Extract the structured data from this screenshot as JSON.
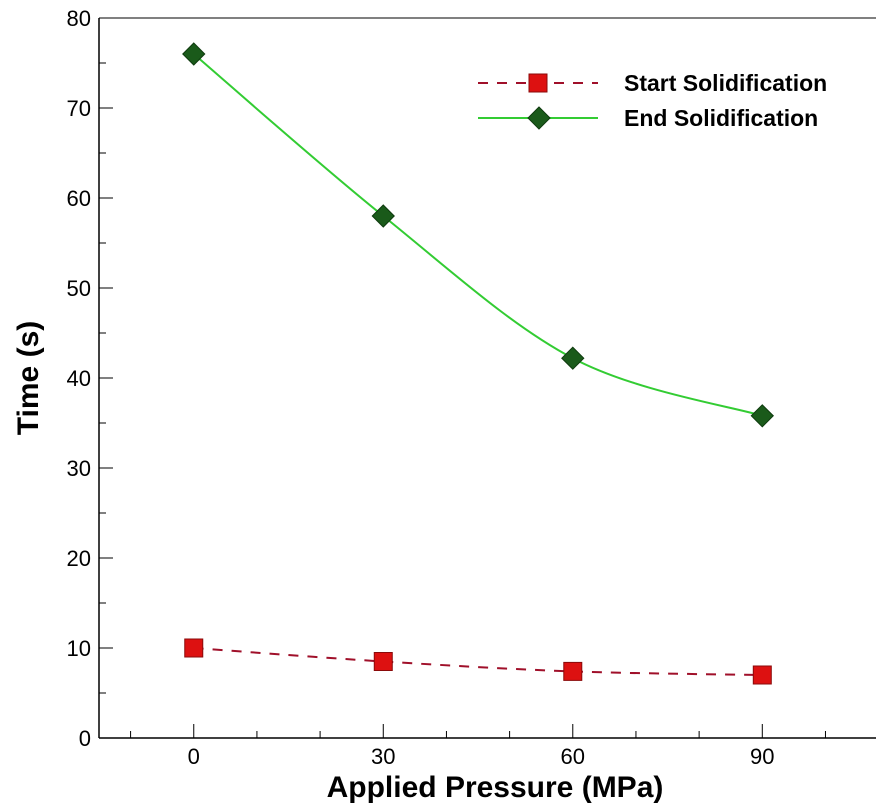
{
  "chart_data": {
    "type": "line",
    "xlabel": "Applied Pressure (MPa)",
    "ylabel": "Time (s)",
    "xlim": [
      -15,
      108
    ],
    "ylim": [
      0,
      80
    ],
    "x_ticks": [
      0,
      30,
      60,
      90
    ],
    "y_ticks": [
      0,
      10,
      20,
      30,
      40,
      50,
      60,
      70,
      80
    ],
    "x_minor_step": 10,
    "y_minor_step": 5,
    "grid": false,
    "legend_position": "top-right",
    "x": [
      0,
      30,
      60,
      90
    ],
    "series": [
      {
        "name": "Start Solidification",
        "values": [
          10.0,
          8.5,
          7.4,
          7.0
        ],
        "color": "#a0102a",
        "marker": "square",
        "marker_color": "#dd1111",
        "line_style": "dashed"
      },
      {
        "name": "End Solidification",
        "values": [
          76.0,
          58.0,
          42.2,
          35.8
        ],
        "color": "#33cc33",
        "marker": "diamond",
        "marker_color": "#1a5a1a",
        "line_style": "solid"
      }
    ]
  }
}
